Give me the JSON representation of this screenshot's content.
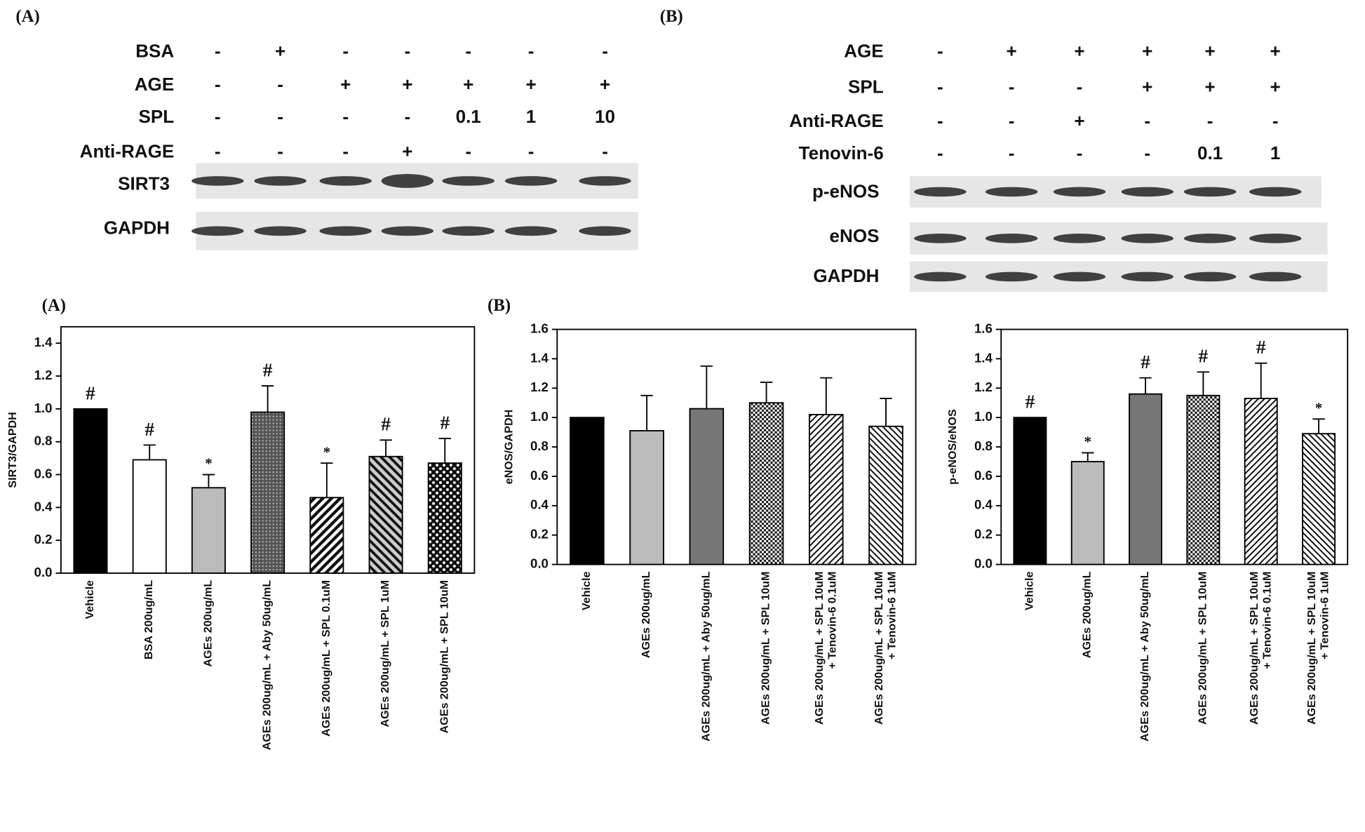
{
  "blots": [
    {
      "label": "(A)",
      "rows": [
        {
          "name": "BSA",
          "cells": [
            "-",
            "+",
            "-",
            "-",
            "-",
            "-",
            "-"
          ]
        },
        {
          "name": "AGE",
          "cells": [
            "-",
            "-",
            "+",
            "+",
            "+",
            "+",
            "+"
          ]
        },
        {
          "name": "SPL",
          "cells": [
            "-",
            "-",
            "-",
            "-",
            "0.1",
            "1",
            "10"
          ]
        },
        {
          "name": "Anti-RAGE",
          "cells": [
            "-",
            "-",
            "-",
            "+",
            "-",
            "-",
            "-"
          ]
        }
      ],
      "bands": [
        "SIRT3",
        "GAPDH"
      ]
    },
    {
      "label": "(B)",
      "rows": [
        {
          "name": "AGE",
          "cells": [
            "-",
            "+",
            "+",
            "+",
            "+",
            "+"
          ]
        },
        {
          "name": "SPL",
          "cells": [
            "-",
            "-",
            "-",
            "+",
            "+",
            "+"
          ]
        },
        {
          "name": "Anti-RAGE",
          "cells": [
            "-",
            "-",
            "+",
            "-",
            "-",
            "-"
          ]
        },
        {
          "name": "Tenovin-6",
          "cells": [
            "-",
            "-",
            "-",
            "-",
            "0.1",
            "1"
          ]
        }
      ],
      "bands": [
        "p-eNOS",
        "eNOS",
        "GAPDH"
      ]
    }
  ],
  "chart_data": [
    {
      "type": "bar",
      "panel": "(A)",
      "y_label": "SIRT3/GAPDH",
      "categories": [
        "Vehicle",
        "BSA 200ug/mL",
        "AGEs 200ug/mL",
        "AGEs 200ug/mL + Aby 50ug/mL",
        "AGEs 200ug/mL + SPL 0.1uM",
        "AGEs 200ug/mL + SPL 1uM",
        "AGEs 200ug/mL + SPL 10uM"
      ],
      "values": [
        1.0,
        0.69,
        0.52,
        0.98,
        0.46,
        0.71,
        0.67
      ],
      "errors": [
        0,
        0.09,
        0.08,
        0.16,
        0.21,
        0.1,
        0.15
      ],
      "annotations": [
        "#",
        "#",
        "*",
        "#",
        "*",
        "#",
        "#"
      ],
      "ylim": [
        0,
        1.5
      ],
      "yticks": [
        {
          "value": 0,
          "label": "0.0"
        },
        0.2,
        0.4,
        0.6,
        0.8,
        {
          "value": 1,
          "label": "1.0"
        },
        1.2,
        1.4
      ]
    },
    {
      "type": "bar",
      "panel": "(B)",
      "y_label": "eNOS/GAPDH",
      "categories": [
        "Vehicle",
        "AGEs 200ug/mL",
        "AGEs 200ug/mL + Aby 50ug/mL",
        "AGEs 200ug/mL + SPL 10uM",
        "AGEs 200ug/mL + SPL 10uM\n+ Tenovin-6 0.1uM",
        "AGEs 200ug/mL + SPL 10uM\n+ Tenovin-6 1uM"
      ],
      "values": [
        1.0,
        0.91,
        1.06,
        1.1,
        1.02,
        0.94
      ],
      "errors": [
        0,
        0.24,
        0.29,
        0.14,
        0.25,
        0.19
      ],
      "ylim": [
        0,
        1.6
      ],
      "yticks": [
        {
          "value": 0,
          "label": "0.0"
        },
        0.2,
        0.4,
        0.6,
        0.8,
        {
          "value": 1,
          "label": "1.0"
        },
        1.2,
        1.4,
        1.6
      ]
    },
    {
      "type": "bar",
      "y_label": "p-eNOS/eNOS",
      "categories": [
        "Vehicle",
        "AGEs 200ug/mL",
        "AGEs 200ug/mL + Aby 50ug/mL",
        "AGEs 200ug/mL + SPL 10uM",
        "AGEs 200ug/mL + SPL 10uM\n+ Tenovin-6 0.1uM",
        "AGEs 200ug/mL + SPL 10uM\n+ Tenovin-6 1uM"
      ],
      "values": [
        1.0,
        0.7,
        1.16,
        1.15,
        1.13,
        0.89
      ],
      "errors": [
        0,
        0.06,
        0.11,
        0.16,
        0.24,
        0.1
      ],
      "annotations": [
        "#",
        "*",
        "#",
        "#",
        "#",
        "*"
      ],
      "ylim": [
        0,
        1.6
      ],
      "yticks": [
        {
          "value": 0,
          "label": "0.0"
        },
        0.2,
        0.4,
        0.6,
        0.8,
        {
          "value": 1,
          "label": "1.0"
        },
        1.2,
        1.4,
        1.6
      ]
    }
  ]
}
